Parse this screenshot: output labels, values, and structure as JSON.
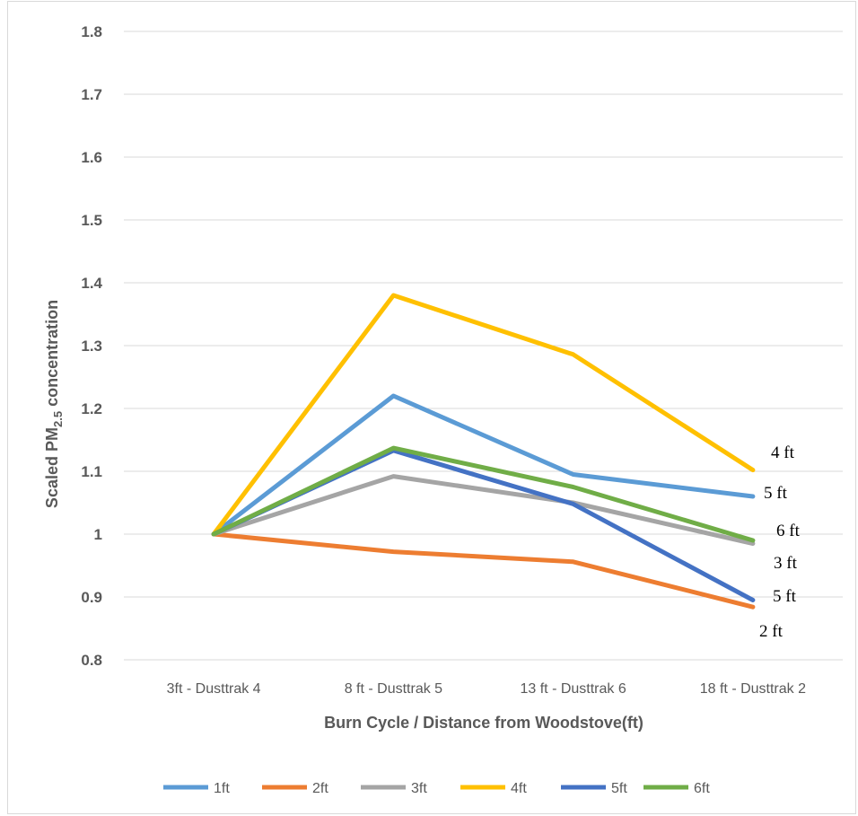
{
  "chart_data": {
    "type": "line",
    "categories": [
      "3ft - Dusttrak 4",
      "8 ft - Dusttrak 5",
      "13 ft - Dusttrak 6",
      "18 ft - Dusttrak 2"
    ],
    "xlabel": "Burn Cycle / Distance from Woodstove(ft)",
    "ylabel": {
      "prefix": "Scaled PM",
      "sub": "2.5",
      "suffix": " concentration"
    },
    "ylim": [
      0.8,
      1.8
    ],
    "yticks": [
      "0.8",
      "0.9",
      "1",
      "1.1",
      "1.2",
      "1.3",
      "1.4",
      "1.5",
      "1.6",
      "1.7",
      "1.8"
    ],
    "grid": true,
    "legend_position": "bottom",
    "series": [
      {
        "name": "1ft",
        "color": "#5b9bd5",
        "values": [
          1.0,
          1.22,
          1.095,
          1.06
        ]
      },
      {
        "name": "2ft",
        "color": "#ed7d31",
        "values": [
          1.0,
          0.972,
          0.956,
          0.884
        ]
      },
      {
        "name": "3ft",
        "color": "#a5a5a5",
        "values": [
          1.0,
          1.092,
          1.05,
          0.985
        ]
      },
      {
        "name": "4ft",
        "color": "#ffc000",
        "values": [
          1.0,
          1.38,
          1.286,
          1.102
        ]
      },
      {
        "name": "5ft",
        "color": "#4472c4",
        "values": [
          1.0,
          1.133,
          1.048,
          0.895
        ]
      },
      {
        "name": "6ft",
        "color": "#70ad47",
        "values": [
          1.0,
          1.137,
          1.075,
          0.99
        ]
      }
    ],
    "annotations": [
      "4 ft",
      "5 ft",
      "6 ft",
      "3 ft",
      "5 ft",
      "2 ft"
    ]
  }
}
